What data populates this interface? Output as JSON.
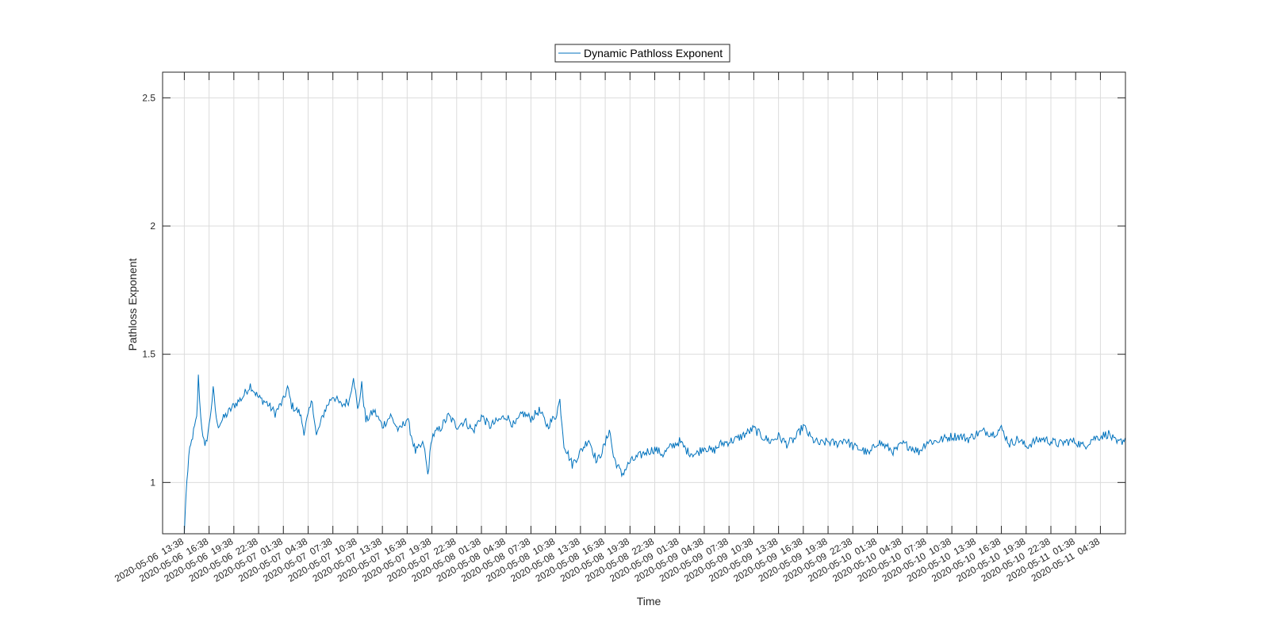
{
  "chart_data": {
    "type": "line",
    "xlabel": "Time",
    "ylabel": "Pathloss Exponent",
    "ylim": [
      0.8,
      2.6
    ],
    "yticks": [
      1,
      1.5,
      2,
      2.5
    ],
    "ytick_labels": [
      "1",
      "1.5",
      "2",
      "2.5"
    ],
    "grid": true,
    "legend_position": "top-center",
    "series_color": "#0072BD",
    "xtick_labels": [
      "2020-05-06  13:38",
      "2020-05-06  16:38",
      "2020-05-06  19:38",
      "2020-05-06  22:38",
      "2020-05-07  01:38",
      "2020-05-07  04:38",
      "2020-05-07  07:38",
      "2020-05-07  10:38",
      "2020-05-07  13:38",
      "2020-05-07  16:38",
      "2020-05-07  19:38",
      "2020-05-07  22:38",
      "2020-05-08  01:38",
      "2020-05-08  04:38",
      "2020-05-08  07:38",
      "2020-05-08  10:38",
      "2020-05-08  13:38",
      "2020-05-08  16:38",
      "2020-05-08  19:38",
      "2020-05-08  22:38",
      "2020-05-09  01:38",
      "2020-05-09  04:38",
      "2020-05-09  07:38",
      "2020-05-09  10:38",
      "2020-05-09  13:38",
      "2020-05-09  16:38",
      "2020-05-09  19:38",
      "2020-05-09  22:38",
      "2020-05-10  01:38",
      "2020-05-10  04:38",
      "2020-05-10  07:38",
      "2020-05-10  10:38",
      "2020-05-10  13:38",
      "2020-05-10  16:38",
      "2020-05-10  19:38",
      "2020-05-10  22:38",
      "2020-05-11  01:38",
      "2020-05-11  04:38"
    ],
    "xlim": [
      "2020-05-06 11:00",
      "2020-05-11 07:40"
    ],
    "series": [
      {
        "name": "Dynamic Pathloss Exponent",
        "x": [
          "2020-05-06 13:38",
          "2020-05-06 13:50",
          "2020-05-06 14:10",
          "2020-05-06 14:38",
          "2020-05-06 15:08",
          "2020-05-06 15:20",
          "2020-05-06 15:38",
          "2020-05-06 16:08",
          "2020-05-06 16:38",
          "2020-05-06 17:08",
          "2020-05-06 17:38",
          "2020-05-06 18:38",
          "2020-05-06 19:38",
          "2020-05-06 20:38",
          "2020-05-06 21:38",
          "2020-05-06 22:38",
          "2020-05-06 23:38",
          "2020-05-07 00:38",
          "2020-05-07 01:38",
          "2020-05-07 02:08",
          "2020-05-07 02:38",
          "2020-05-07 03:38",
          "2020-05-07 04:08",
          "2020-05-07 04:38",
          "2020-05-07 05:08",
          "2020-05-07 05:38",
          "2020-05-07 06:38",
          "2020-05-07 07:38",
          "2020-05-07 08:38",
          "2020-05-07 09:38",
          "2020-05-07 10:08",
          "2020-05-07 10:38",
          "2020-05-07 11:08",
          "2020-05-07 11:38",
          "2020-05-07 12:38",
          "2020-05-07 13:38",
          "2020-05-07 14:38",
          "2020-05-07 15:38",
          "2020-05-07 16:38",
          "2020-05-07 17:38",
          "2020-05-07 18:38",
          "2020-05-07 19:08",
          "2020-05-07 19:38",
          "2020-05-07 20:38",
          "2020-05-07 21:38",
          "2020-05-07 22:38",
          "2020-05-07 23:38",
          "2020-05-08 00:38",
          "2020-05-08 01:38",
          "2020-05-08 02:38",
          "2020-05-08 03:38",
          "2020-05-08 04:38",
          "2020-05-08 05:38",
          "2020-05-08 06:38",
          "2020-05-08 07:38",
          "2020-05-08 08:38",
          "2020-05-08 09:38",
          "2020-05-08 10:38",
          "2020-05-08 11:08",
          "2020-05-08 11:38",
          "2020-05-08 12:38",
          "2020-05-08 13:38",
          "2020-05-08 14:38",
          "2020-05-08 15:38",
          "2020-05-08 16:38",
          "2020-05-08 17:08",
          "2020-05-08 17:38",
          "2020-05-08 18:38",
          "2020-05-08 19:38",
          "2020-05-08 20:38",
          "2020-05-08 21:38",
          "2020-05-08 22:38",
          "2020-05-08 23:38",
          "2020-05-09 00:38",
          "2020-05-09 01:38",
          "2020-05-09 02:38",
          "2020-05-09 03:38",
          "2020-05-09 04:38",
          "2020-05-09 05:38",
          "2020-05-09 06:38",
          "2020-05-09 07:38",
          "2020-05-09 08:38",
          "2020-05-09 09:38",
          "2020-05-09 10:38",
          "2020-05-09 11:38",
          "2020-05-09 12:38",
          "2020-05-09 13:38",
          "2020-05-09 14:38",
          "2020-05-09 15:38",
          "2020-05-09 16:38",
          "2020-05-09 17:38",
          "2020-05-09 18:38",
          "2020-05-09 19:38",
          "2020-05-09 20:38",
          "2020-05-09 21:38",
          "2020-05-09 22:38",
          "2020-05-09 23:38",
          "2020-05-10 00:38",
          "2020-05-10 01:38",
          "2020-05-10 02:38",
          "2020-05-10 03:38",
          "2020-05-10 04:38",
          "2020-05-10 05:38",
          "2020-05-10 06:38",
          "2020-05-10 07:38",
          "2020-05-10 08:38",
          "2020-05-10 09:38",
          "2020-05-10 10:38",
          "2020-05-10 11:38",
          "2020-05-10 12:38",
          "2020-05-10 13:38",
          "2020-05-10 14:38",
          "2020-05-10 15:38",
          "2020-05-10 16:38",
          "2020-05-10 17:38",
          "2020-05-10 18:38",
          "2020-05-10 19:38",
          "2020-05-10 20:38",
          "2020-05-10 21:38",
          "2020-05-10 22:38",
          "2020-05-10 23:38",
          "2020-05-11 00:38",
          "2020-05-11 01:38",
          "2020-05-11 02:38",
          "2020-05-11 03:38",
          "2020-05-11 04:38",
          "2020-05-11 05:38",
          "2020-05-11 06:38",
          "2020-05-11 07:38"
        ],
        "y": [
          0.8,
          0.95,
          1.1,
          1.18,
          1.25,
          1.41,
          1.25,
          1.13,
          1.22,
          1.36,
          1.22,
          1.26,
          1.3,
          1.33,
          1.38,
          1.33,
          1.31,
          1.27,
          1.32,
          1.37,
          1.3,
          1.27,
          1.2,
          1.26,
          1.32,
          1.18,
          1.28,
          1.34,
          1.3,
          1.32,
          1.42,
          1.28,
          1.38,
          1.24,
          1.28,
          1.22,
          1.26,
          1.2,
          1.25,
          1.12,
          1.15,
          1.03,
          1.18,
          1.21,
          1.26,
          1.22,
          1.24,
          1.2,
          1.26,
          1.22,
          1.24,
          1.26,
          1.22,
          1.27,
          1.25,
          1.28,
          1.22,
          1.26,
          1.32,
          1.15,
          1.07,
          1.12,
          1.17,
          1.08,
          1.15,
          1.21,
          1.1,
          1.03,
          1.08,
          1.1,
          1.12,
          1.13,
          1.11,
          1.14,
          1.16,
          1.12,
          1.11,
          1.14,
          1.12,
          1.15,
          1.16,
          1.17,
          1.19,
          1.21,
          1.18,
          1.16,
          1.18,
          1.15,
          1.17,
          1.22,
          1.17,
          1.15,
          1.16,
          1.15,
          1.17,
          1.14,
          1.13,
          1.11,
          1.16,
          1.14,
          1.12,
          1.15,
          1.14,
          1.12,
          1.16,
          1.16,
          1.17,
          1.18,
          1.18,
          1.17,
          1.19,
          1.2,
          1.19,
          1.21,
          1.15,
          1.17,
          1.14,
          1.16,
          1.17,
          1.16,
          1.15,
          1.16,
          1.16,
          1.14,
          1.17,
          1.18,
          1.19,
          1.15,
          1.17
        ]
      }
    ]
  }
}
